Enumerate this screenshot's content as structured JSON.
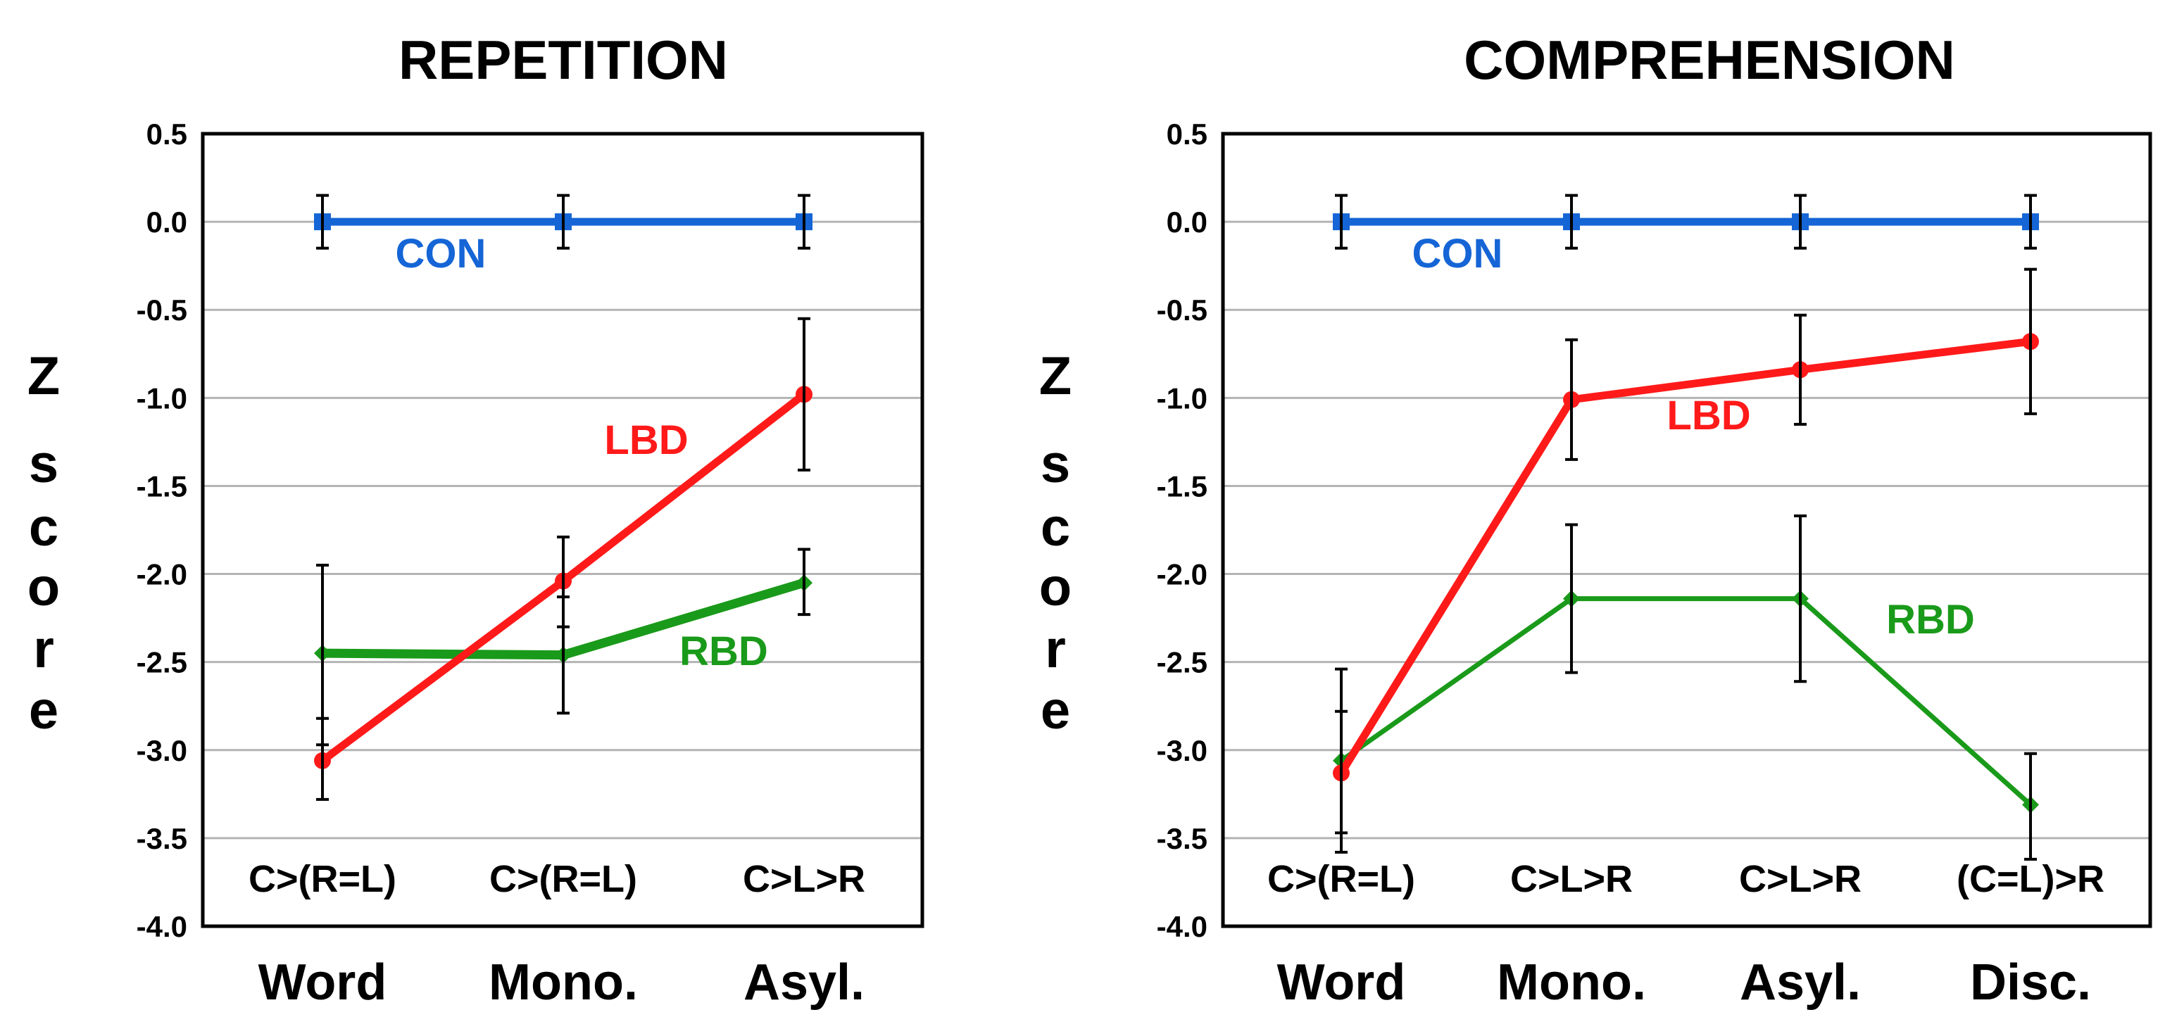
{
  "colors": {
    "CON": "#1565d6",
    "LBD": "#ff1a1a",
    "RBD": "#1a9a1a",
    "axis": "#000000",
    "grid": "#b4b4b4",
    "errorbar": "#000000"
  },
  "y_axis_label_letters": [
    "Z",
    "s",
    "c",
    "o",
    "r",
    "e"
  ],
  "chart_data": [
    {
      "type": "line",
      "title": "REPETITION",
      "ylabel": "Z score",
      "ylim": [
        -4.0,
        0.5
      ],
      "yticks": [
        "0.5",
        "0.0",
        "-0.5",
        "-1.0",
        "-1.5",
        "-2.0",
        "-2.5",
        "-3.0",
        "-3.5",
        "-4.0"
      ],
      "categories": [
        "Word",
        "Mono.",
        "Asyl."
      ],
      "contrasts": [
        "C>(R=L)",
        "C>(R=L)",
        "C>L>R"
      ],
      "series": [
        {
          "name": "CON",
          "marker": "square",
          "values": [
            0.0,
            0.0,
            0.0
          ],
          "err_low": [
            -0.15,
            -0.15,
            -0.15
          ],
          "err_high": [
            0.15,
            0.15,
            0.15
          ]
        },
        {
          "name": "LBD",
          "marker": "circle",
          "values": [
            -3.06,
            -2.04,
            -0.98
          ],
          "err_low": [
            -3.28,
            -2.3,
            -1.41
          ],
          "err_high": [
            -2.82,
            -1.79,
            -0.55
          ]
        },
        {
          "name": "RBD",
          "marker": "diamond",
          "values": [
            -2.45,
            -2.46,
            -2.05
          ],
          "err_low": [
            -2.97,
            -2.79,
            -2.23
          ],
          "err_high": [
            -1.95,
            -2.13,
            -1.86
          ]
        }
      ],
      "labels": [
        {
          "text": "CON",
          "series": "CON"
        },
        {
          "text": "LBD",
          "series": "LBD"
        },
        {
          "text": "RBD",
          "series": "RBD"
        }
      ]
    },
    {
      "type": "line",
      "title": "COMPREHENSION",
      "ylabel": "Z score",
      "ylim": [
        -4.0,
        0.5
      ],
      "yticks": [
        "0.5",
        "0.0",
        "-0.5",
        "-1.0",
        "-1.5",
        "-2.0",
        "-2.5",
        "-3.0",
        "-3.5",
        "-4.0"
      ],
      "categories": [
        "Word",
        "Mono.",
        "Asyl.",
        "Disc."
      ],
      "contrasts": [
        "C>(R=L)",
        "C>L>R",
        "C>L>R",
        "(C=L)>R"
      ],
      "series": [
        {
          "name": "CON",
          "marker": "square",
          "values": [
            0.0,
            0.0,
            0.0,
            0.0
          ],
          "err_low": [
            -0.15,
            -0.15,
            -0.15,
            -0.15
          ],
          "err_high": [
            0.15,
            0.15,
            0.15,
            0.15
          ]
        },
        {
          "name": "LBD",
          "marker": "circle",
          "values": [
            -3.13,
            -1.01,
            -0.84,
            -0.68
          ],
          "err_low": [
            -3.58,
            -1.35,
            -1.15,
            -1.09
          ],
          "err_high": [
            -2.78,
            -0.67,
            -0.53,
            -0.27
          ]
        },
        {
          "name": "RBD",
          "marker": "diamond",
          "values": [
            -3.06,
            -2.14,
            -2.14,
            -3.31
          ],
          "err_low": [
            -3.47,
            -2.56,
            -2.61,
            -3.62
          ],
          "err_high": [
            -2.54,
            -1.72,
            -1.67,
            -3.02
          ]
        }
      ],
      "labels": [
        {
          "text": "CON",
          "series": "CON"
        },
        {
          "text": "LBD",
          "series": "LBD"
        },
        {
          "text": "RBD",
          "series": "RBD"
        }
      ]
    }
  ]
}
